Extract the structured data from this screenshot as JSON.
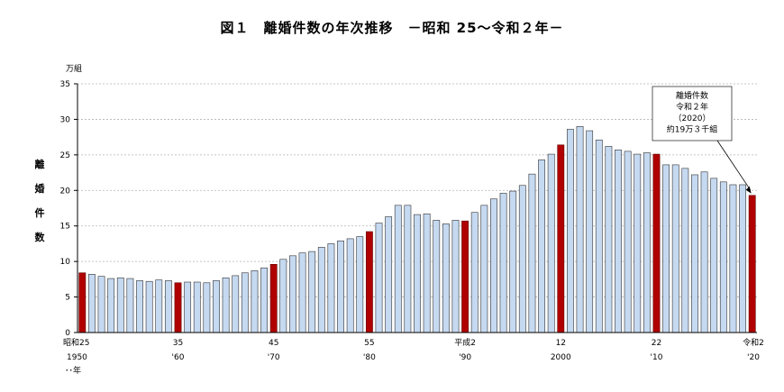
{
  "chart_data": {
    "type": "bar",
    "title": "図１　離婚件数の年次推移　－昭和 25～令和２年－",
    "unit_label": "万組",
    "ylabel_chars": [
      "離",
      "婚",
      "件",
      "数"
    ],
    "ylim": [
      0,
      35
    ],
    "yticks": [
      "0",
      "5",
      "10",
      "15",
      "20",
      "25",
      "30",
      "35"
    ],
    "grid": true,
    "years": [
      1950,
      1951,
      1952,
      1953,
      1954,
      1955,
      1956,
      1957,
      1958,
      1959,
      1960,
      1961,
      1962,
      1963,
      1964,
      1965,
      1966,
      1967,
      1968,
      1969,
      1970,
      1971,
      1972,
      1973,
      1974,
      1975,
      1976,
      1977,
      1978,
      1979,
      1980,
      1981,
      1982,
      1983,
      1984,
      1985,
      1986,
      1987,
      1988,
      1989,
      1990,
      1991,
      1992,
      1993,
      1994,
      1995,
      1996,
      1997,
      1998,
      1999,
      2000,
      2001,
      2002,
      2003,
      2004,
      2005,
      2006,
      2007,
      2008,
      2009,
      2010,
      2011,
      2012,
      2013,
      2014,
      2015,
      2016,
      2017,
      2018,
      2019,
      2020
    ],
    "values": [
      8.4,
      8.2,
      7.9,
      7.6,
      7.7,
      7.6,
      7.3,
      7.2,
      7.4,
      7.3,
      7.0,
      7.1,
      7.1,
      7.0,
      7.3,
      7.7,
      8.0,
      8.4,
      8.7,
      9.1,
      9.6,
      10.3,
      10.8,
      11.2,
      11.4,
      12.0,
      12.5,
      12.9,
      13.2,
      13.5,
      14.2,
      15.4,
      16.3,
      17.9,
      17.9,
      16.6,
      16.7,
      15.8,
      15.3,
      15.8,
      15.7,
      16.9,
      17.9,
      18.8,
      19.6,
      19.9,
      20.7,
      22.3,
      24.3,
      25.1,
      26.4,
      28.6,
      29.0,
      28.4,
      27.1,
      26.2,
      25.7,
      25.5,
      25.1,
      25.3,
      25.1,
      23.6,
      23.6,
      23.1,
      22.2,
      22.6,
      21.7,
      21.2,
      20.8,
      20.8,
      19.3
    ],
    "highlight_years": [
      1950,
      1960,
      1970,
      1980,
      1990,
      2000,
      2010,
      2020
    ],
    "xticks": [
      {
        "year": 1950,
        "era": "昭和25",
        "western": "1950"
      },
      {
        "year": 1960,
        "era": "35",
        "western": "'60"
      },
      {
        "year": 1970,
        "era": "45",
        "western": "'70"
      },
      {
        "year": 1980,
        "era": "55",
        "western": "'80"
      },
      {
        "year": 1990,
        "era": "平成2",
        "western": "'90"
      },
      {
        "year": 2000,
        "era": "12",
        "western": "2000"
      },
      {
        "year": 2010,
        "era": "22",
        "western": "'10"
      },
      {
        "year": 2020,
        "era": "令和2",
        "western": "'20"
      }
    ],
    "x_unit_label": "･･年",
    "annotation": {
      "target_year": 2020,
      "lines": [
        "離婚件数",
        "令和２年",
        "（2020）",
        "約19万３千組"
      ]
    },
    "colors": {
      "bar": "#c5d9f1",
      "bar_highlight": "#b00000",
      "bar_outline": "#333333",
      "grid": "#b3b3b3"
    }
  }
}
